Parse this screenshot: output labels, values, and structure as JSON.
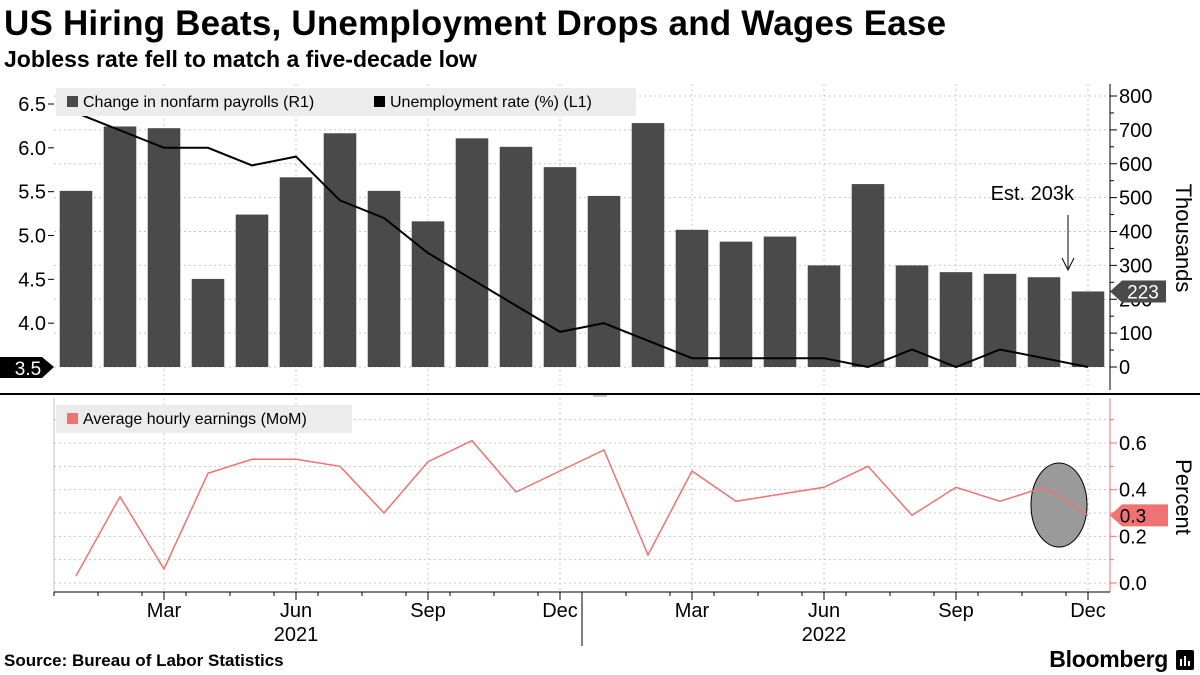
{
  "header": {
    "title": "US Hiring Beats, Unemployment Drops and Wages Ease",
    "subtitle": "Jobless rate fell to match a five-decade low"
  },
  "footer": {
    "source": "Source: Bureau of Labor Statistics",
    "brand": "Bloomberg"
  },
  "colors": {
    "bar": "#4a4a4a",
    "unemployment_line": "#000000",
    "earnings_line": "#f07272",
    "earnings_axis": "#f07272",
    "grid": "#c8c8c8",
    "legend_bg": "#ececec",
    "highlight_circle": "#9a9a9a"
  },
  "chart_data": [
    {
      "type": "bar",
      "x": [
        "2021-01",
        "2021-02",
        "2021-03",
        "2021-04",
        "2021-05",
        "2021-06",
        "2021-07",
        "2021-08",
        "2021-09",
        "2021-10",
        "2021-11",
        "2021-12",
        "2022-01",
        "2022-02",
        "2022-03",
        "2022-04",
        "2022-05",
        "2022-06",
        "2022-07",
        "2022-08",
        "2022-09",
        "2022-10",
        "2022-11",
        "2022-12"
      ],
      "series": [
        {
          "name": "Change in nonfarm payrolls (R1)",
          "type": "bar",
          "axis": "right",
          "values": [
            520,
            710,
            705,
            260,
            450,
            560,
            690,
            520,
            430,
            675,
            650,
            590,
            505,
            720,
            405,
            370,
            385,
            300,
            540,
            300,
            280,
            275,
            265,
            223
          ]
        },
        {
          "name": "Unemployment rate (%) (L1)",
          "type": "line",
          "axis": "left",
          "values": [
            6.4,
            6.2,
            6.0,
            6.0,
            5.8,
            5.9,
            5.4,
            5.2,
            4.8,
            4.5,
            4.2,
            3.9,
            4.0,
            3.8,
            3.6,
            3.6,
            3.6,
            3.6,
            3.5,
            3.7,
            3.5,
            3.7,
            3.6,
            3.5
          ]
        }
      ],
      "left_axis": {
        "ylim": [
          3.5,
          6.7
        ],
        "ticks": [
          "3.5",
          "4.0",
          "4.5",
          "5.0",
          "5.5",
          "6.0",
          "6.5"
        ]
      },
      "right_axis": {
        "ylabel": "Thousands",
        "ylim": [
          -30,
          800
        ],
        "ticks": [
          "0",
          "100",
          "200",
          "300",
          "400",
          "500",
          "600",
          "700",
          "800"
        ]
      },
      "callouts": {
        "left_value": "3.5",
        "right_value": "223",
        "annotation": "Est. 203k"
      },
      "legend_placement": "top-left",
      "grid": true
    },
    {
      "type": "line",
      "x": [
        "2021-01",
        "2021-02",
        "2021-03",
        "2021-04",
        "2021-05",
        "2021-06",
        "2021-07",
        "2021-08",
        "2021-09",
        "2021-10",
        "2021-11",
        "2021-12",
        "2022-01",
        "2022-02",
        "2022-03",
        "2022-04",
        "2022-05",
        "2022-06",
        "2022-07",
        "2022-08",
        "2022-09",
        "2022-10",
        "2022-11",
        "2022-12"
      ],
      "series": [
        {
          "name": "Average hourly earnings (MoM)",
          "values": [
            0.03,
            0.37,
            0.06,
            0.47,
            0.53,
            0.53,
            0.5,
            0.3,
            0.52,
            0.61,
            0.39,
            0.48,
            0.57,
            0.12,
            0.48,
            0.35,
            0.38,
            0.41,
            0.5,
            0.29,
            0.41,
            0.35,
            0.41,
            0.29
          ]
        }
      ],
      "ylabel": "Percent",
      "ylim": [
        -0.05,
        0.78
      ],
      "ticks": [
        "0.0",
        "0.2",
        "0.4",
        "0.6"
      ],
      "callouts": {
        "right_value": "0.3"
      },
      "legend_placement": "top-left",
      "grid": true
    }
  ],
  "x_axis": {
    "month_labels": [
      "Mar",
      "Jun",
      "Sep",
      "Dec",
      "Mar",
      "Jun",
      "Sep",
      "Dec"
    ],
    "year_labels": [
      "2021",
      "2022"
    ]
  }
}
